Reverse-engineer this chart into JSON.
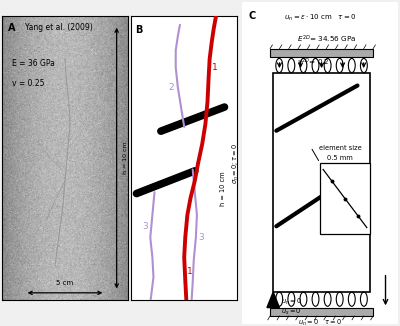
{
  "fig_width": 4.0,
  "fig_height": 3.26,
  "dpi": 100,
  "bg_color": "#f0f0f0",
  "panel_A": {
    "label": "A",
    "title": "Yang et al. (2009)",
    "text1": "E = 36 GPa",
    "text2": "v = 0.25",
    "h_label": "h = 10 cm",
    "w_label": "5 cm"
  },
  "panel_B": {
    "label": "B",
    "crack1_color": "#cc0000",
    "crack2_color": "#b090d0",
    "flaw_color": "#111111",
    "label1": "1",
    "label2": "2",
    "label3": "3"
  },
  "panel_C": {
    "label": "C"
  }
}
